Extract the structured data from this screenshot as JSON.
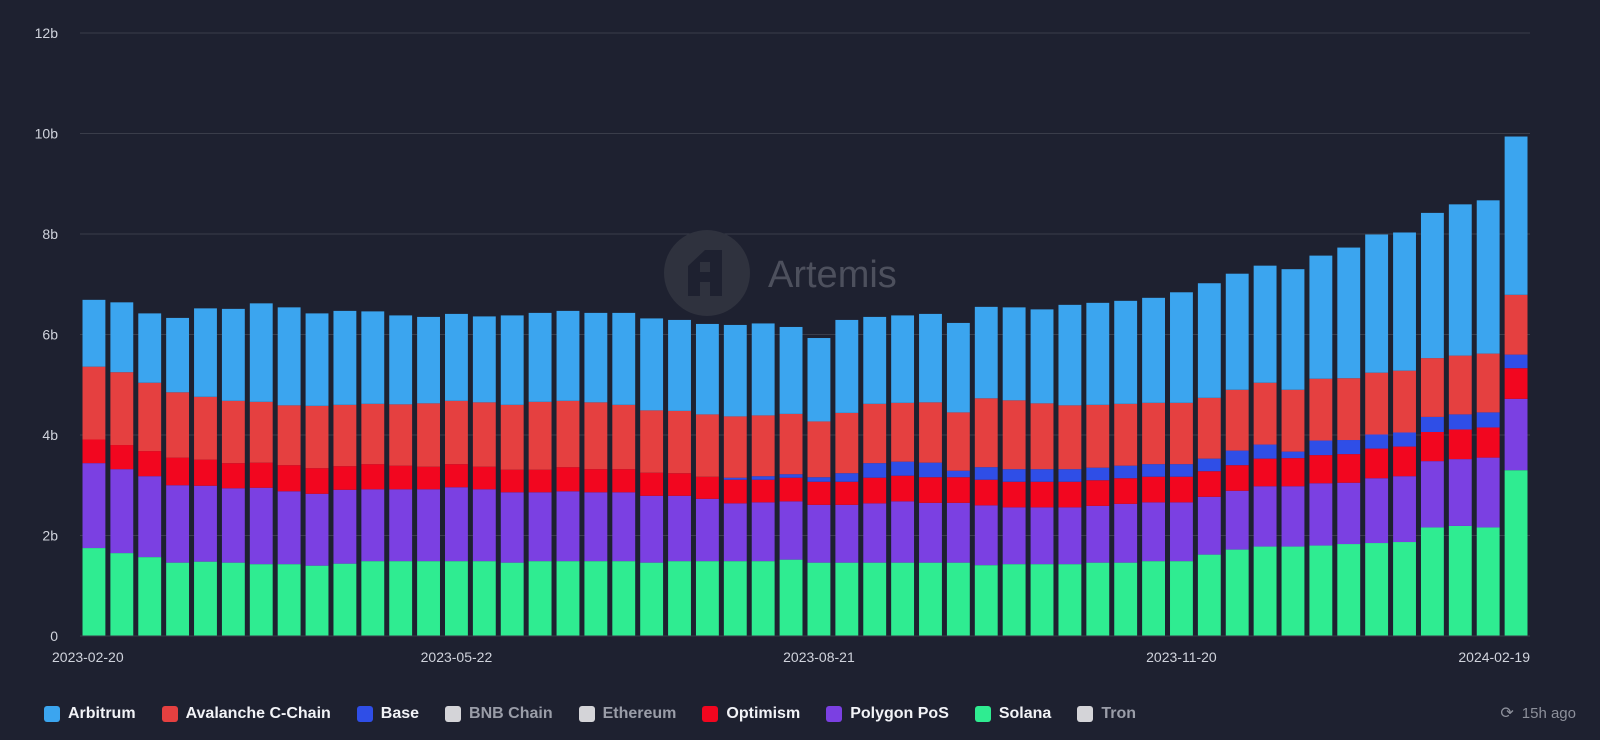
{
  "chart_data": {
    "type": "bar",
    "stacked": true,
    "watermark": "Artemis",
    "ylim": [
      0,
      12
    ],
    "yticks": [
      "0",
      "2b",
      "4b",
      "6b",
      "8b",
      "10b",
      "12b"
    ],
    "xtick_labels": [
      {
        "index": 0,
        "label": "2023-02-20"
      },
      {
        "index": 13,
        "label": "2023-05-22"
      },
      {
        "index": 26,
        "label": "2023-08-21"
      },
      {
        "index": 39,
        "label": "2023-11-20"
      },
      {
        "index": 52,
        "label": "2024-02-19"
      }
    ],
    "series": [
      {
        "name": "Solana",
        "color": "#2fec91",
        "values": [
          1.75,
          1.65,
          1.57,
          1.46,
          1.48,
          1.46,
          1.43,
          1.43,
          1.4,
          1.44,
          1.49,
          1.49,
          1.49,
          1.49,
          1.49,
          1.46,
          1.49,
          1.49,
          1.49,
          1.49,
          1.46,
          1.49,
          1.49,
          1.49,
          1.49,
          1.52,
          1.46,
          1.46,
          1.46,
          1.46,
          1.46,
          1.46,
          1.41,
          1.43,
          1.43,
          1.43,
          1.46,
          1.46,
          1.49,
          1.49,
          1.62,
          1.72,
          1.78,
          1.78,
          1.8,
          1.83,
          1.85,
          1.87,
          2.16,
          2.19,
          2.16,
          3.3
        ]
      },
      {
        "name": "Polygon PoS",
        "color": "#7b40e2",
        "values": [
          1.69,
          1.67,
          1.61,
          1.54,
          1.51,
          1.48,
          1.52,
          1.45,
          1.43,
          1.47,
          1.43,
          1.43,
          1.43,
          1.47,
          1.43,
          1.4,
          1.37,
          1.39,
          1.37,
          1.37,
          1.33,
          1.3,
          1.24,
          1.15,
          1.17,
          1.16,
          1.15,
          1.15,
          1.18,
          1.22,
          1.19,
          1.19,
          1.19,
          1.13,
          1.13,
          1.13,
          1.13,
          1.17,
          1.17,
          1.17,
          1.15,
          1.17,
          1.2,
          1.2,
          1.24,
          1.22,
          1.29,
          1.31,
          1.32,
          1.33,
          1.39,
          1.42
        ]
      },
      {
        "name": "Optimism",
        "color": "#f2061f",
        "values": [
          0.47,
          0.48,
          0.5,
          0.55,
          0.52,
          0.5,
          0.5,
          0.52,
          0.51,
          0.47,
          0.5,
          0.47,
          0.45,
          0.46,
          0.45,
          0.45,
          0.45,
          0.48,
          0.46,
          0.46,
          0.46,
          0.45,
          0.44,
          0.47,
          0.45,
          0.47,
          0.46,
          0.46,
          0.51,
          0.51,
          0.51,
          0.51,
          0.51,
          0.51,
          0.51,
          0.51,
          0.51,
          0.51,
          0.51,
          0.51,
          0.51,
          0.51,
          0.55,
          0.56,
          0.56,
          0.57,
          0.59,
          0.59,
          0.58,
          0.59,
          0.6,
          0.61
        ]
      },
      {
        "name": "Base",
        "color": "#2f4ee7",
        "values": [
          0,
          0,
          0,
          0,
          0,
          0,
          0,
          0,
          0,
          0,
          0,
          0,
          0,
          0,
          0,
          0,
          0,
          0,
          0,
          0,
          0,
          0,
          0,
          0.04,
          0.07,
          0.07,
          0.09,
          0.17,
          0.29,
          0.28,
          0.29,
          0.13,
          0.25,
          0.25,
          0.25,
          0.25,
          0.25,
          0.25,
          0.25,
          0.25,
          0.25,
          0.29,
          0.28,
          0.13,
          0.29,
          0.28,
          0.28,
          0.28,
          0.3,
          0.3,
          0.3,
          0.27
        ]
      },
      {
        "name": "Avalanche C-Chain",
        "color": "#e54040",
        "values": [
          1.45,
          1.45,
          1.36,
          1.3,
          1.25,
          1.24,
          1.21,
          1.19,
          1.24,
          1.22,
          1.2,
          1.22,
          1.26,
          1.26,
          1.28,
          1.29,
          1.35,
          1.32,
          1.33,
          1.28,
          1.24,
          1.24,
          1.24,
          1.22,
          1.21,
          1.2,
          1.11,
          1.2,
          1.18,
          1.17,
          1.2,
          1.16,
          1.37,
          1.37,
          1.31,
          1.27,
          1.25,
          1.23,
          1.22,
          1.22,
          1.21,
          1.21,
          1.23,
          1.23,
          1.23,
          1.23,
          1.23,
          1.23,
          1.17,
          1.17,
          1.17,
          1.19
        ]
      },
      {
        "name": "Arbitrum",
        "color": "#3ba5ef",
        "values": [
          1.33,
          1.39,
          1.38,
          1.48,
          1.76,
          1.83,
          1.96,
          1.95,
          1.84,
          1.87,
          1.84,
          1.77,
          1.72,
          1.73,
          1.71,
          1.78,
          1.77,
          1.79,
          1.78,
          1.83,
          1.83,
          1.81,
          1.8,
          1.82,
          1.83,
          1.73,
          1.66,
          1.85,
          1.73,
          1.74,
          1.76,
          1.78,
          1.82,
          1.85,
          1.87,
          2.0,
          2.03,
          2.05,
          2.09,
          2.2,
          2.28,
          2.31,
          2.33,
          2.4,
          2.45,
          2.6,
          2.75,
          2.75,
          2.89,
          3.01,
          3.05,
          3.15
        ]
      }
    ],
    "legend": [
      {
        "name": "Arbitrum",
        "color": "#3ba5ef",
        "active": true
      },
      {
        "name": "Avalanche C-Chain",
        "color": "#e54040",
        "active": true
      },
      {
        "name": "Base",
        "color": "#2f4ee7",
        "active": true
      },
      {
        "name": "BNB Chain",
        "color": "#d4d4d8",
        "active": false
      },
      {
        "name": "Ethereum",
        "color": "#d4d4d8",
        "active": false
      },
      {
        "name": "Optimism",
        "color": "#f2061f",
        "active": true
      },
      {
        "name": "Polygon PoS",
        "color": "#7b40e2",
        "active": true
      },
      {
        "name": "Solana",
        "color": "#2fec91",
        "active": true
      },
      {
        "name": "Tron",
        "color": "#d4d4d8",
        "active": false
      }
    ],
    "grid": true,
    "legend_position": "bottom"
  },
  "status": {
    "updated_text": "15h ago",
    "refresh_icon": "refresh-icon"
  }
}
